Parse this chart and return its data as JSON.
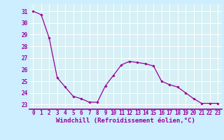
{
  "x": [
    0,
    1,
    2,
    3,
    4,
    5,
    6,
    7,
    8,
    9,
    10,
    11,
    12,
    13,
    14,
    15,
    16,
    17,
    18,
    19,
    20,
    21,
    22,
    23
  ],
  "y": [
    31.0,
    30.7,
    28.7,
    25.3,
    24.5,
    23.7,
    23.5,
    23.2,
    23.2,
    24.6,
    25.5,
    26.4,
    26.7,
    26.6,
    26.5,
    26.3,
    25.0,
    24.7,
    24.5,
    24.0,
    23.5,
    23.1,
    23.1,
    23.1
  ],
  "line_color": "#990099",
  "marker": "D",
  "marker_size": 1.8,
  "bg_color": "#cceeff",
  "plot_bg_color": "#d6f0f5",
  "grid_color": "#ffffff",
  "xlabel": "Windchill (Refroidissement éolien,°C)",
  "xlabel_color": "#990099",
  "xlabel_fontsize": 6.5,
  "tick_color": "#990099",
  "tick_fontsize": 5.5,
  "ytick_vals": [
    23,
    24,
    25,
    26,
    27,
    28,
    29,
    30,
    31
  ],
  "ytick_labels": [
    "23",
    "24",
    "25",
    "26",
    "27",
    "28",
    "29",
    "30",
    "31"
  ],
  "ylim": [
    22.6,
    31.6
  ],
  "xlim": [
    -0.5,
    23.5
  ],
  "xtick_labels": [
    "0",
    "1",
    "2",
    "3",
    "4",
    "5",
    "6",
    "7",
    "8",
    "9",
    "10",
    "11",
    "12",
    "13",
    "14",
    "15",
    "16",
    "17",
    "18",
    "19",
    "20",
    "21",
    "22",
    "23"
  ],
  "spine_color": "#990099",
  "bottom_line_color": "#990099"
}
